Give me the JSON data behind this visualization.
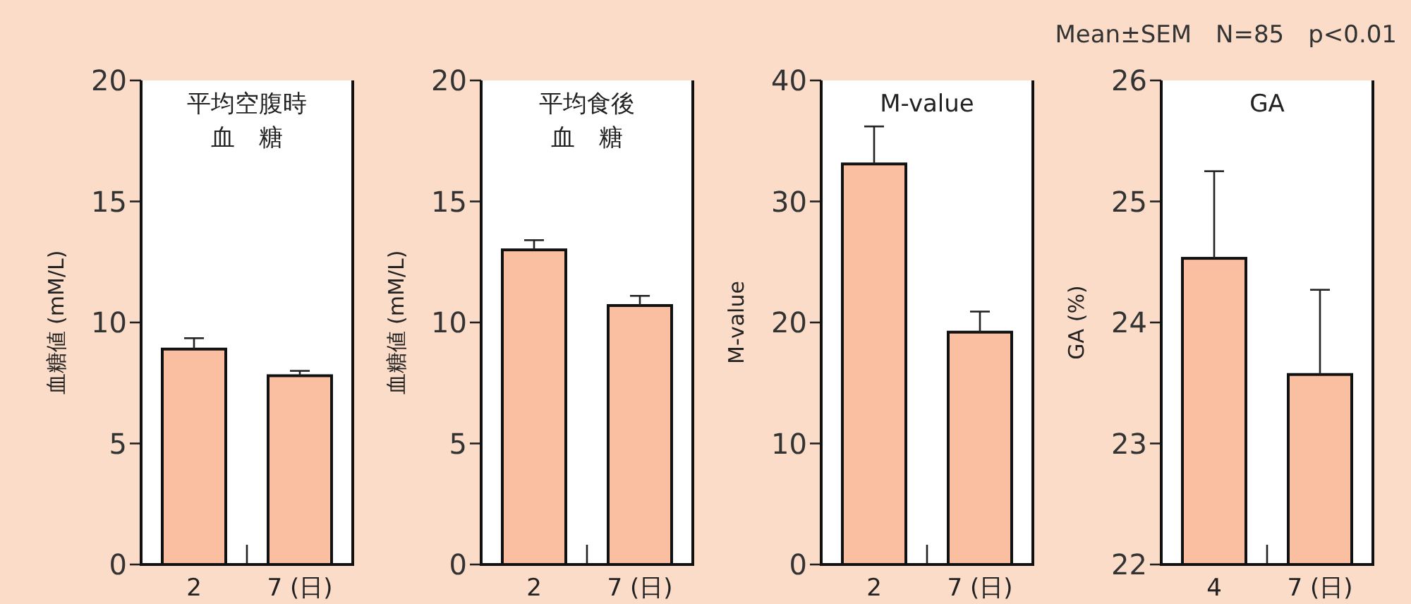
{
  "chart_data": [
    {
      "type": "bar",
      "title": "平均空腹時",
      "subtitle": "血　糖",
      "ylabel": "血糖値 (mM/L)",
      "categories": [
        "2",
        "7 (日)"
      ],
      "values": [
        8.9,
        7.8
      ],
      "errors": [
        [
          8.9,
          9.35
        ],
        [
          7.8,
          8.0
        ]
      ],
      "color": "#f9bfa0",
      "ylim": [
        0,
        20
      ],
      "yticks": [
        0,
        5,
        10,
        15,
        20
      ]
    },
    {
      "type": "bar",
      "title": "平均食後",
      "subtitle": "血　糖",
      "ylabel": "血糖値 (mM/L)",
      "categories": [
        "2",
        "7 (日)"
      ],
      "values": [
        13.0,
        10.7
      ],
      "errors": [
        [
          13.0,
          13.4
        ],
        [
          10.7,
          11.1
        ]
      ],
      "color": "#f9bfa0",
      "ylim": [
        0,
        20
      ],
      "yticks": [
        0,
        5,
        10,
        15,
        20
      ]
    },
    {
      "type": "bar",
      "title": "M-value",
      "ylabel": "M-value",
      "categories": [
        "2",
        "7 (日)"
      ],
      "values": [
        33.1,
        19.2
      ],
      "errors": [
        [
          33.1,
          36.2
        ],
        [
          19.2,
          20.9
        ]
      ],
      "color": "#f9bfa0",
      "ylim": [
        0,
        40
      ],
      "yticks": [
        0,
        10,
        20,
        30,
        40
      ]
    },
    {
      "type": "bar",
      "title": "GA",
      "ylabel": "GA (%)",
      "categories": [
        "4",
        "7 (日)"
      ],
      "values": [
        24.53,
        23.57
      ],
      "errors": [
        [
          24.53,
          25.25
        ],
        [
          23.57,
          24.27
        ]
      ],
      "color": "#f9bfa0",
      "ylim": [
        22,
        26
      ],
      "yticks": [
        22,
        23,
        24,
        25,
        26
      ],
      "annotations": [
        "Mean±SEM　N=85　p<0.01"
      ]
    }
  ]
}
